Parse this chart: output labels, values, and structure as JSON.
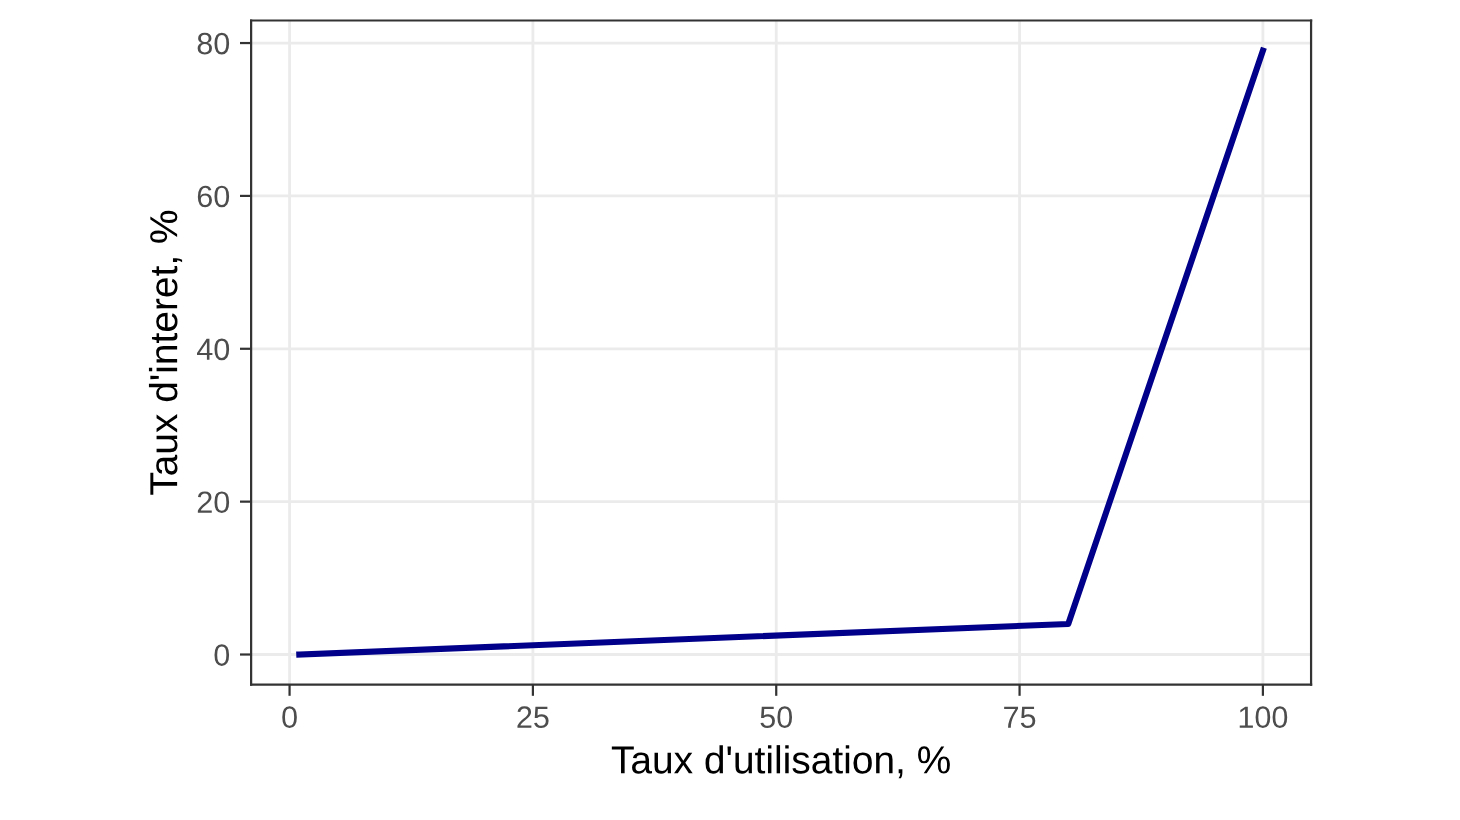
{
  "chart_data": {
    "type": "line",
    "xlabel": "Taux d'utilisation, %",
    "ylabel": "Taux d'interet, %",
    "x": [
      1,
      80,
      100
    ],
    "series": [
      {
        "color": "#00008b",
        "values": [
          0,
          4,
          79
        ]
      }
    ],
    "xlim": [
      -3.95,
      104.95
    ],
    "ylim": [
      -3.95,
      82.95
    ],
    "xticks": [
      0,
      25,
      50,
      75,
      100
    ],
    "yticks": [
      0,
      20,
      40,
      60,
      80
    ],
    "grid": true,
    "marker": "none",
    "line_style": "solid"
  }
}
